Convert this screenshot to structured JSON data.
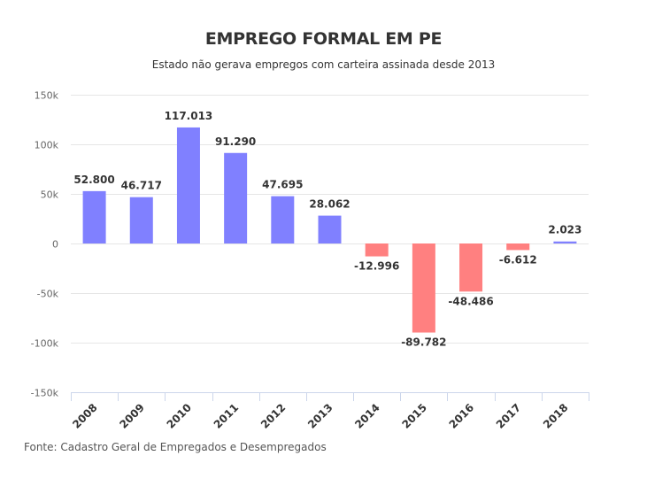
{
  "chart_data": {
    "type": "bar",
    "title": "EMPREGO FORMAL EM PE",
    "subtitle": "Estado não gerava empregos com carteira assinada desde 2013",
    "source": "Fonte: Cadastro Geral de Empregados e Desempregados",
    "categories": [
      "2008",
      "2009",
      "2010",
      "2011",
      "2012",
      "2013",
      "2014",
      "2015",
      "2016",
      "2017",
      "2018"
    ],
    "values": [
      52800,
      46717,
      117013,
      91290,
      47695,
      28062,
      -12996,
      -89782,
      -48486,
      -6612,
      2023
    ],
    "value_labels": [
      "52.800",
      "46.717",
      "117.013",
      "91.290",
      "47.695",
      "28.062",
      "-12.996",
      "-89.782",
      "-48.486",
      "-6.612",
      "2.023"
    ],
    "ylim": [
      -150000,
      150000
    ],
    "yticks": [
      150000,
      100000,
      50000,
      0,
      -50000,
      -100000,
      -150000
    ],
    "ytick_labels": [
      "150k",
      "100k",
      "50k",
      "0",
      "-50k",
      "-100k",
      "-150k"
    ],
    "grid": true,
    "colors": {
      "positive": "#8080ff",
      "negative": "#ff8080",
      "grid": "#e6e6e6",
      "axis": "#ccd6eb"
    }
  }
}
